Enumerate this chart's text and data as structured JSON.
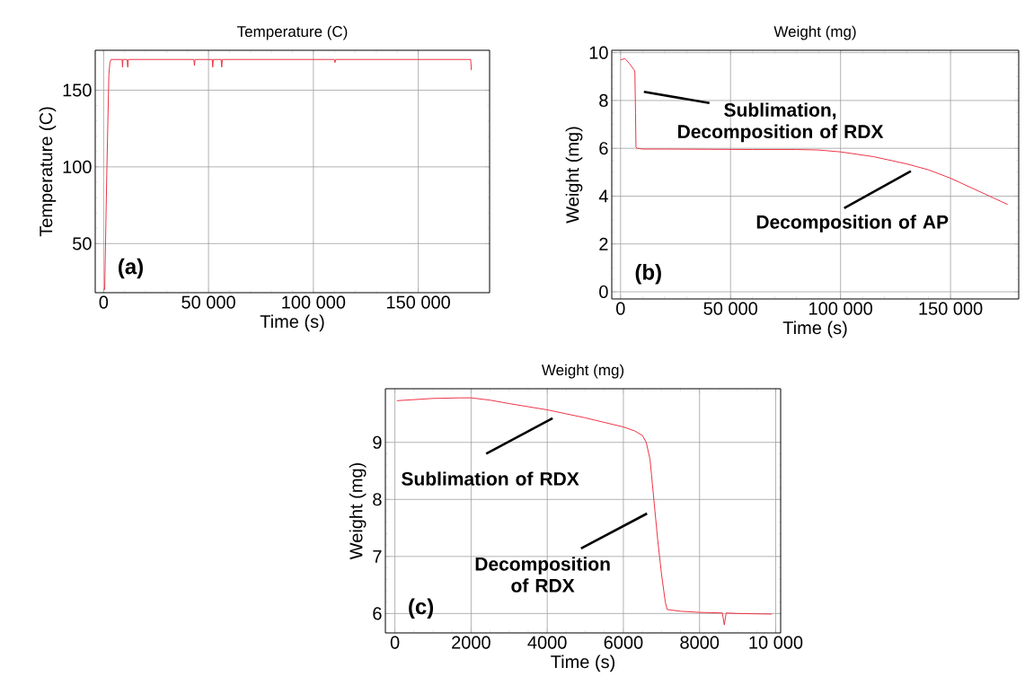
{
  "chart_data": [
    {
      "type": "line",
      "title": "Temperature (C)",
      "xlabel": "Time (s)",
      "ylabel": "Temperature (C)",
      "color": "#ee3344",
      "grid": true,
      "xlim": [
        -4000,
        184000
      ],
      "ylim": [
        18,
        176
      ],
      "xticks": [
        0,
        {
          "value": 50000,
          "label": "50 000"
        },
        {
          "value": 100000,
          "label": "100 000"
        },
        {
          "value": 150000,
          "label": "150 000"
        }
      ],
      "yticks": [
        50,
        100,
        150
      ],
      "x": [
        0,
        500,
        1500,
        2500,
        3000,
        3500,
        8800,
        9000,
        9200,
        11200,
        11500,
        11800,
        43000,
        43300,
        43600,
        51800,
        52000,
        52300,
        56000,
        56300,
        56600,
        110000,
        110300,
        110600,
        175000,
        175300
      ],
      "values": [
        20,
        20,
        95,
        160,
        168,
        170,
        170,
        165,
        170,
        170,
        165,
        170,
        170,
        166,
        170,
        170,
        165,
        170,
        170,
        165,
        170,
        170,
        168,
        170,
        170,
        163
      ],
      "annotations": [
        "(a)"
      ]
    },
    {
      "type": "line",
      "title": "Weight (mg)",
      "xlabel": "Time (s)",
      "ylabel": "Weight (mg)",
      "color": "#ee3344",
      "grid": true,
      "xlim": [
        -4000,
        181000
      ],
      "ylim": [
        -0.3,
        10.1
      ],
      "xticks": [
        0,
        {
          "value": 50000,
          "label": "50 000"
        },
        {
          "value": 100000,
          "label": "100 000"
        },
        {
          "value": 150000,
          "label": "150 000"
        }
      ],
      "yticks": [
        0,
        2,
        4,
        6,
        8,
        10
      ],
      "x": [
        0,
        2000,
        4000,
        6000,
        6500,
        6800,
        7000,
        7500,
        10000,
        20000,
        40000,
        60000,
        80000,
        90000,
        100000,
        115000,
        130000,
        140000,
        150000,
        163000,
        176000
      ],
      "values": [
        9.7,
        9.75,
        9.55,
        9.3,
        9.2,
        7.5,
        6.05,
        6.0,
        5.97,
        5.97,
        5.96,
        5.95,
        5.95,
        5.93,
        5.85,
        5.65,
        5.35,
        5.1,
        4.75,
        4.2,
        3.65
      ],
      "annotations": [
        "(b)",
        "Sublimation, Decomposition of RDX",
        "Decomposition of AP"
      ]
    },
    {
      "type": "line",
      "title": "Weight (mg)",
      "xlabel": "Time (s)",
      "ylabel": "Weight (mg)",
      "color": "#ee3344",
      "grid": true,
      "xlim": [
        -250,
        10130
      ],
      "ylim": [
        5.66,
        9.94
      ],
      "xticks": [
        0,
        2000,
        4000,
        6000,
        8000,
        {
          "value": 10000,
          "label": "10 000"
        }
      ],
      "yticks": [
        6,
        7,
        8,
        9
      ],
      "x": [
        50,
        1000,
        1700,
        2000,
        2500,
        3000,
        4000,
        5000,
        6000,
        6300,
        6500,
        6600,
        6700,
        6800,
        6900,
        7000,
        7100,
        7150,
        7500,
        8000,
        8600,
        8650,
        8700,
        9000,
        9900
      ],
      "values": [
        9.73,
        9.77,
        9.78,
        9.78,
        9.74,
        9.68,
        9.57,
        9.43,
        9.27,
        9.2,
        9.12,
        9.0,
        8.7,
        8.0,
        7.3,
        6.7,
        6.2,
        6.07,
        6.04,
        6.02,
        6.01,
        5.8,
        6.01,
        6.0,
        5.99
      ],
      "annotations": [
        "(c)",
        "Sublimation of RDX",
        "Decomposition of RDX"
      ]
    }
  ]
}
